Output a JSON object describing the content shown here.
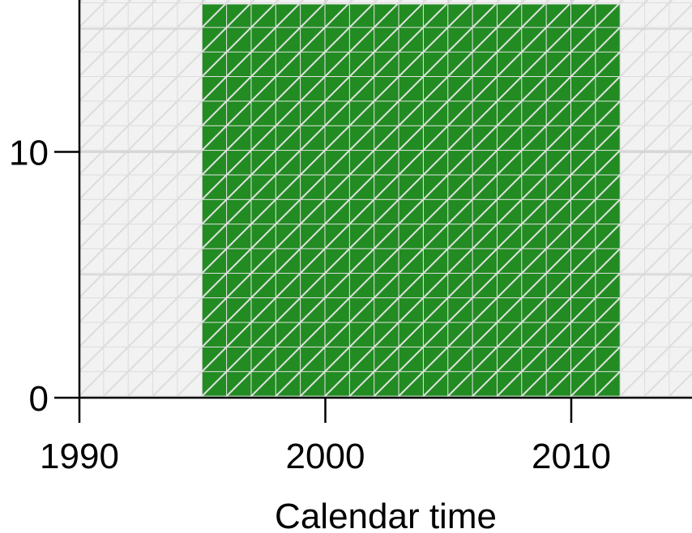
{
  "chart_data": {
    "type": "area",
    "title": "",
    "xlabel": "Calendar time",
    "ylabel": "",
    "xlim": [
      1990,
      2015
    ],
    "ylim": [
      0,
      16
    ],
    "x_ticks": [
      "1990",
      "2000",
      "2010"
    ],
    "y_ticks": [
      "0",
      "10"
    ],
    "grid": true,
    "series": [
      {
        "x": [
          1995,
          2012
        ],
        "values": [
          16,
          16
        ]
      }
    ],
    "colors": {
      "fill": "#228B22",
      "background": "#EBEBEB",
      "grid": "#D3D3D3",
      "pattern_line": "#FFFFFF",
      "axis": "#000000"
    }
  }
}
